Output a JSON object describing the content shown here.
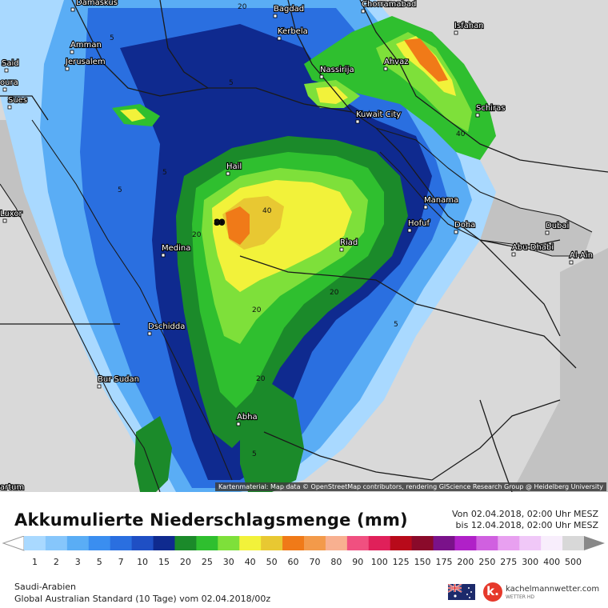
{
  "map": {
    "cities": [
      {
        "name": "Damaskus"
      },
      {
        "name": "Bagdad"
      },
      {
        "name": "Chorramabad"
      },
      {
        "name": "Kerbela"
      },
      {
        "name": "Isfahan"
      },
      {
        "name": "Amman"
      },
      {
        "name": "Jerusalem"
      },
      {
        "name": "Said"
      },
      {
        "name": "oura"
      },
      {
        "name": "Nassirija"
      },
      {
        "name": "Ahvaz"
      },
      {
        "name": "Sues"
      },
      {
        "name": "Kuwait City"
      },
      {
        "name": "Schiras"
      },
      {
        "name": "Hail"
      },
      {
        "name": "Manama"
      },
      {
        "name": "Luxor"
      },
      {
        "name": "Hofuf"
      },
      {
        "name": "Doha"
      },
      {
        "name": "Dubai"
      },
      {
        "name": "Medina"
      },
      {
        "name": "Riad"
      },
      {
        "name": "Abu Dhabi"
      },
      {
        "name": "Al-Ain"
      },
      {
        "name": "Dschidda"
      },
      {
        "name": "Bur Sudan"
      },
      {
        "name": "Abha"
      },
      {
        "name": "artum"
      }
    ],
    "contour_labels": [
      "20",
      "5",
      "5",
      "40",
      "5",
      "5",
      "80",
      "40",
      "20",
      "20",
      "20",
      "5",
      "20",
      "5"
    ],
    "attribution": "Kartenmaterial: Map data © OpenStreetMap contributors, rendering GIScience Research Group @ Heidelberg University"
  },
  "legend": {
    "title": "Akkumulierte Niederschlagsmenge (mm)",
    "period_from": "Von 02.04.2018, 02:00 Uhr MESZ",
    "period_to": "bis 12.04.2018, 02:00 Uhr MESZ",
    "steps": [
      {
        "label": "1",
        "color": "#a9d9ff"
      },
      {
        "label": "2",
        "color": "#86c6fb"
      },
      {
        "label": "3",
        "color": "#5aadf5"
      },
      {
        "label": "5",
        "color": "#3a8ef0"
      },
      {
        "label": "7",
        "color": "#2a6fe0"
      },
      {
        "label": "10",
        "color": "#1f4fc4"
      },
      {
        "label": "15",
        "color": "#0f2a8f"
      },
      {
        "label": "20",
        "color": "#1b8a2a"
      },
      {
        "label": "25",
        "color": "#2fbf2f"
      },
      {
        "label": "30",
        "color": "#7ee03a"
      },
      {
        "label": "40",
        "color": "#f2f23a"
      },
      {
        "label": "50",
        "color": "#e8c832"
      },
      {
        "label": "60",
        "color": "#f07a18"
      },
      {
        "label": "70",
        "color": "#f39a4a"
      },
      {
        "label": "80",
        "color": "#f8b090"
      },
      {
        "label": "90",
        "color": "#f05080"
      },
      {
        "label": "100",
        "color": "#e0205a"
      },
      {
        "label": "125",
        "color": "#b80a1a"
      },
      {
        "label": "150",
        "color": "#8a0a2a"
      },
      {
        "label": "175",
        "color": "#7a128a"
      },
      {
        "label": "200",
        "color": "#b020c8"
      },
      {
        "label": "250",
        "color": "#d060e0"
      },
      {
        "label": "275",
        "color": "#e8a0f0"
      },
      {
        "label": "300",
        "color": "#f0c8f8"
      },
      {
        "label": "400",
        "color": "#f8eefc"
      },
      {
        "label": "500",
        "color": "#d8d8d8"
      }
    ]
  },
  "footer": {
    "region": "Saudi-Arabien",
    "model": "Global Australian Standard (10 Tage) vom 02.04.2018/00z",
    "brand_name": "kachelmannwetter.com",
    "brand_sub": "WETTER HD",
    "logo_letter": "k."
  },
  "colors": {
    "land": "#d9d9d9",
    "sea": "#bfbfbf",
    "border": "#1a1a1a"
  }
}
